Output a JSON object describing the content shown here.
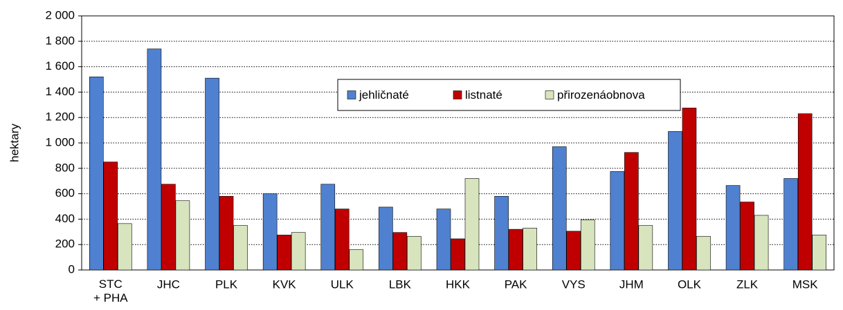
{
  "chart_data": {
    "type": "bar",
    "y_label": "hektary",
    "categories": [
      "STC\n+ PHA",
      "JHC",
      "PLK",
      "KVK",
      "ULK",
      "LBK",
      "HKK",
      "PAK",
      "VYS",
      "JHM",
      "OLK",
      "ZLK",
      "MSK"
    ],
    "series": [
      {
        "name": "jehličnaté",
        "color": "#4f81d0",
        "values": [
          1520,
          1740,
          1510,
          600,
          675,
          495,
          480,
          580,
          970,
          775,
          1090,
          665,
          720
        ]
      },
      {
        "name": "listnaté",
        "color": "#c00000",
        "values": [
          850,
          675,
          580,
          275,
          480,
          295,
          245,
          320,
          305,
          925,
          1275,
          535,
          1230
        ]
      },
      {
        "name": "přirozenáobnova",
        "color": "#d7e4bd",
        "values": [
          365,
          545,
          350,
          295,
          160,
          265,
          720,
          330,
          395,
          350,
          265,
          430,
          275
        ]
      }
    ],
    "ylim": [
      0,
      2000
    ],
    "yticks": [
      0,
      200,
      400,
      600,
      800,
      {
        "value": 1000,
        "label": "1 000"
      },
      {
        "value": 1200,
        "label": "1 200"
      },
      {
        "value": 1400,
        "label": "1 400"
      },
      {
        "value": 1600,
        "label": "1 600"
      },
      {
        "value": 1800,
        "label": "1 800"
      },
      {
        "value": 2000,
        "label": "2 000"
      }
    ],
    "grid": true,
    "legend": "top-center"
  }
}
